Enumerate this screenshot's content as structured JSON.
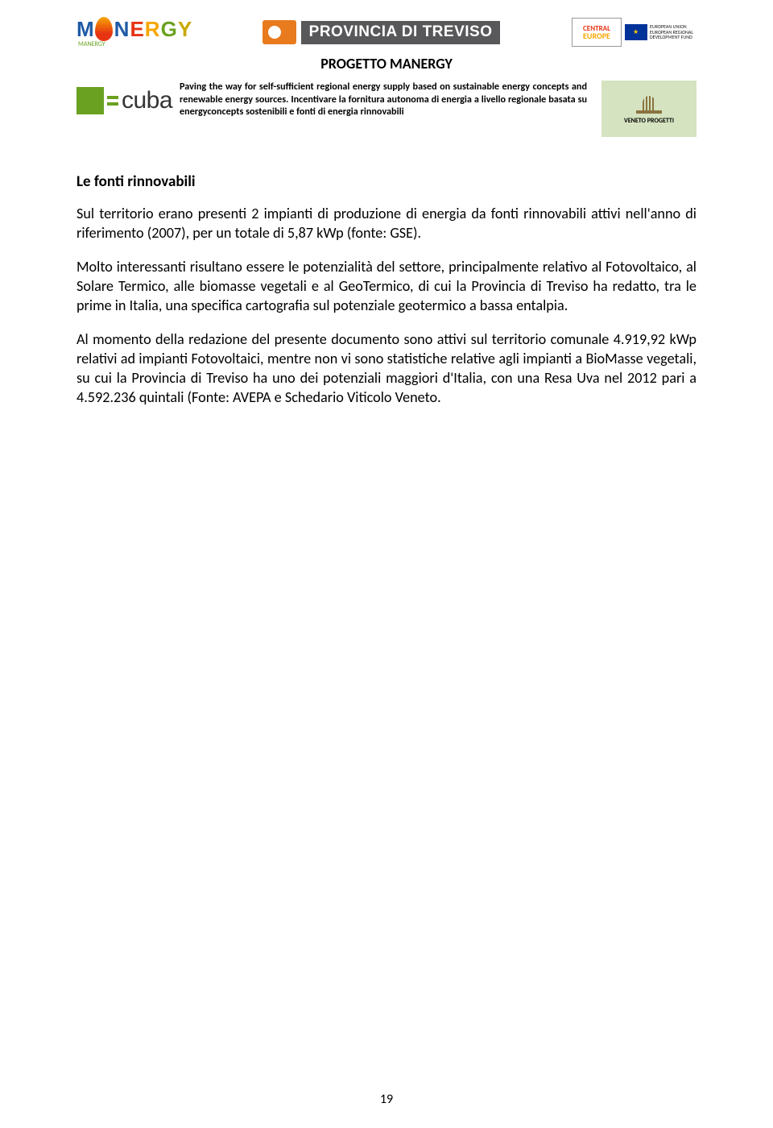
{
  "logos": {
    "manergy_letters": [
      "M",
      "",
      "N",
      "E",
      "R",
      "G",
      "Y"
    ],
    "manergy_sub": "MANERGY",
    "provincia_text": "PROVINCIA DI TREVISO",
    "central_line1": "CENTRAL",
    "central_line2": "EUROPE",
    "eu_line1": "EUROPEAN UNION",
    "eu_line2": "EUROPEAN REGIONAL",
    "eu_line3": "DEVELOPMENT FUND",
    "cuba_text": "cuba",
    "veneto_text": "VENETO PROGETTI"
  },
  "header": {
    "title": "PROGETTO MANERGY",
    "description": "Paving the way for self-sufficient regional energy supply based on sustainable energy concepts and renewable energy sources. Incentivare la fornitura autonoma di energia a livello regionale basata su energyconcepts sostenibili e fonti di energia rinnovabili"
  },
  "content": {
    "section_title": "Le fonti rinnovabili",
    "p1": "Sul territorio erano presenti 2 impianti di produzione di energia da fonti rinnovabili attivi nell'anno di riferimento (2007), per un totale di 5,87 kWp (fonte: GSE).",
    "p2": "Molto interessanti risultano essere le potenzialità del settore, principalmente relativo al Fotovoltaico, al Solare Termico, alle biomasse vegetali e al GeoTermico, di cui la Provincia di Treviso ha redatto, tra le prime in Italia, una specifica cartografia sul potenziale geotermico a bassa entalpia.",
    "p3": "Al momento della redazione del presente documento sono attivi sul territorio comunale 4.919,92 kWp relativi ad impianti Fotovoltaici, mentre non vi sono statistiche relative agli impianti a BioMasse vegetali, su cui la Provincia di Treviso ha uno dei potenziali maggiori d'Italia, con una Resa Uva nel 2012 pari a 4.592.236 quintali (Fonte: AVEPA e Schedario Viticolo Veneto."
  },
  "page_number": "19",
  "colors": {
    "green": "#6aa121",
    "orange": "#e87b1e",
    "darkgray": "#58585a",
    "veneto_bg": "#d5e3c0"
  }
}
